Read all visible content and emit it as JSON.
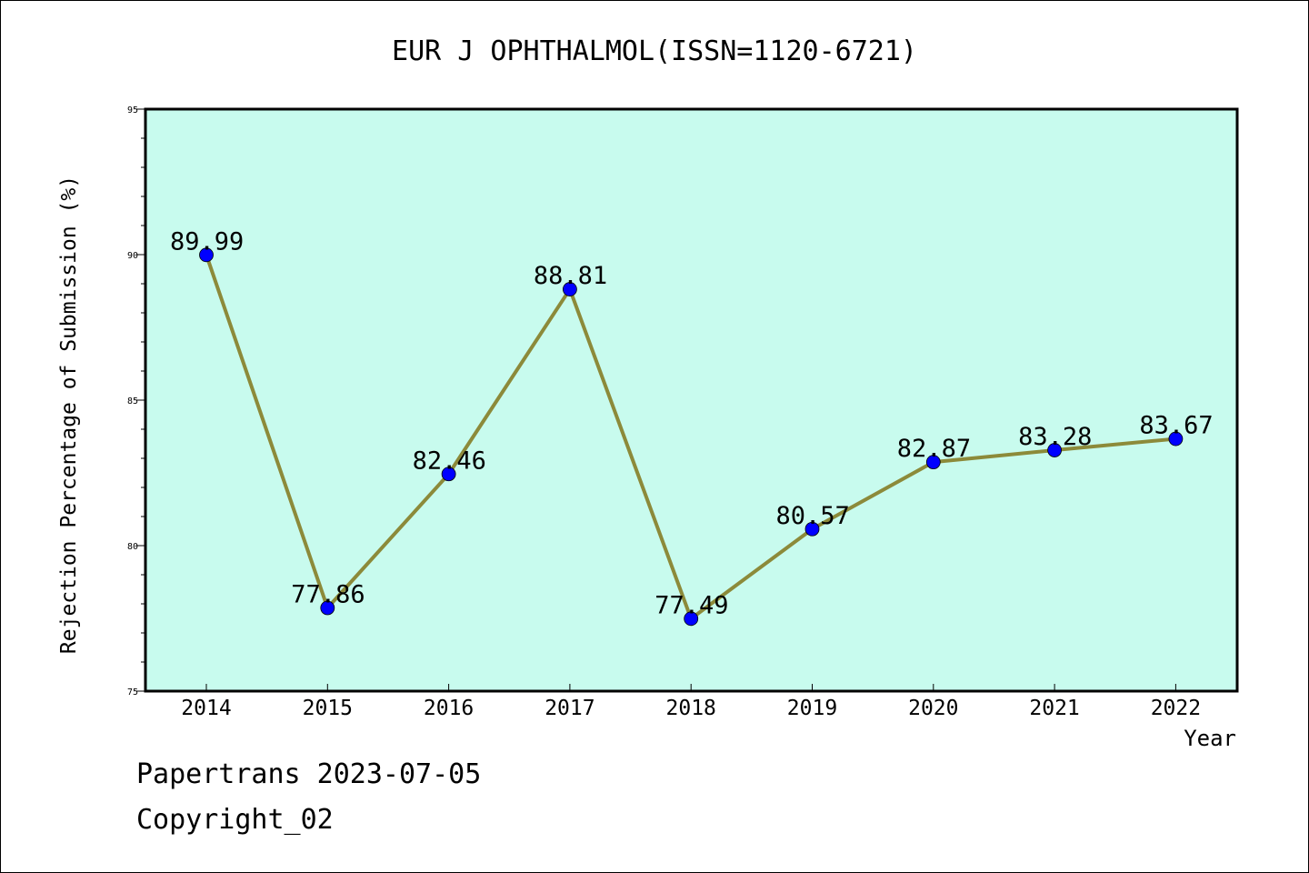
{
  "chart_data": {
    "type": "line",
    "title": "EUR J OPHTHALMOL(ISSN=1120-6721)",
    "xlabel": "Year",
    "ylabel": "Rejection Percentage of Submission (%)",
    "categories": [
      "2014",
      "2015",
      "2016",
      "2017",
      "2018",
      "2019",
      "2020",
      "2021",
      "2022"
    ],
    "series": [
      {
        "values": [
          89.99,
          77.86,
          82.46,
          88.81,
          77.49,
          80.57,
          82.87,
          83.28,
          83.67
        ]
      }
    ],
    "data_labels": [
      "89.99",
      "77.86",
      "82.46",
      "88.81",
      "77.49",
      "80.57",
      "82.87",
      "83.28",
      "83.67"
    ],
    "ylim": [
      75,
      95
    ],
    "yticks": [
      "75",
      "80",
      "85",
      "90",
      "95"
    ],
    "grid": false,
    "colors": {
      "plot_background": "#c8fbee",
      "line": "#8c8a3a",
      "marker": "#0000ff"
    }
  },
  "footer": {
    "line1": "Papertrans 2023-07-05",
    "line2": "Copyright_02"
  }
}
